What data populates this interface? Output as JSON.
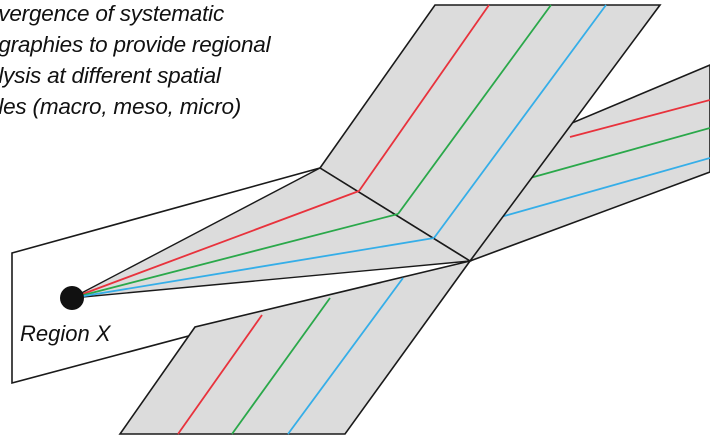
{
  "caption": {
    "lines": [
      "nvergence of systematic",
      "ographies to provide regional",
      "alysis at different spatial",
      "ales (macro, meso, micro)"
    ]
  },
  "region": {
    "label": "Region X"
  },
  "colors": {
    "band_fill": "#dcdcdc",
    "outline": "#1a1a1a",
    "red": "#e8323c",
    "green": "#2aa84a",
    "blue": "#35aee8",
    "dot": "#111111"
  }
}
